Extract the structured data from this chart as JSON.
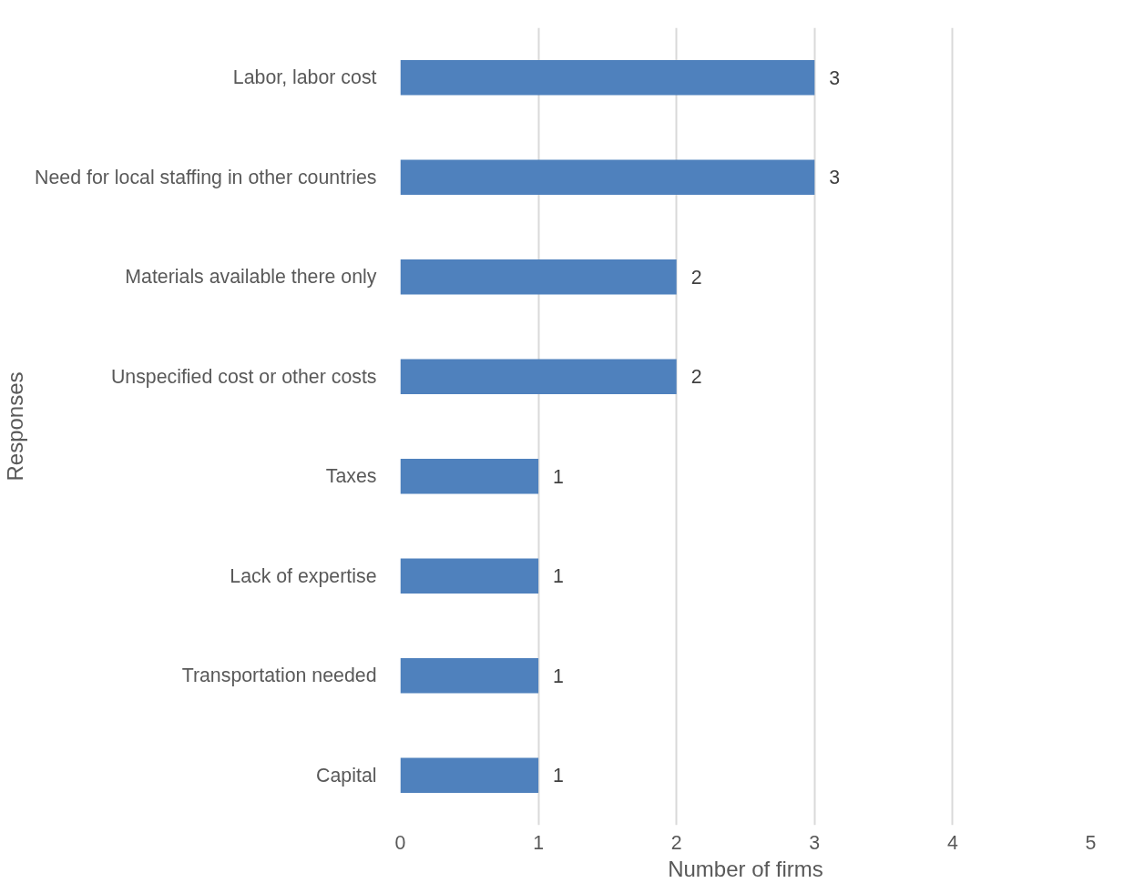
{
  "chart_data": {
    "type": "bar",
    "orientation": "horizontal",
    "xlabel": "Number of firms",
    "ylabel": "Responses",
    "categories": [
      "Labor, labor cost",
      "Need for local staffing in other countries",
      "Materials available there only",
      "Unspecified cost or other costs",
      "Taxes",
      "Lack of expertise",
      "Transportation needed",
      "Capital"
    ],
    "values": [
      3,
      3,
      2,
      2,
      1,
      1,
      1,
      1
    ],
    "color": "#4f81bd",
    "xlim": [
      0,
      5
    ],
    "xticks": [
      0,
      1,
      2,
      3,
      4,
      5
    ],
    "grid": "x",
    "data_labels": true
  }
}
